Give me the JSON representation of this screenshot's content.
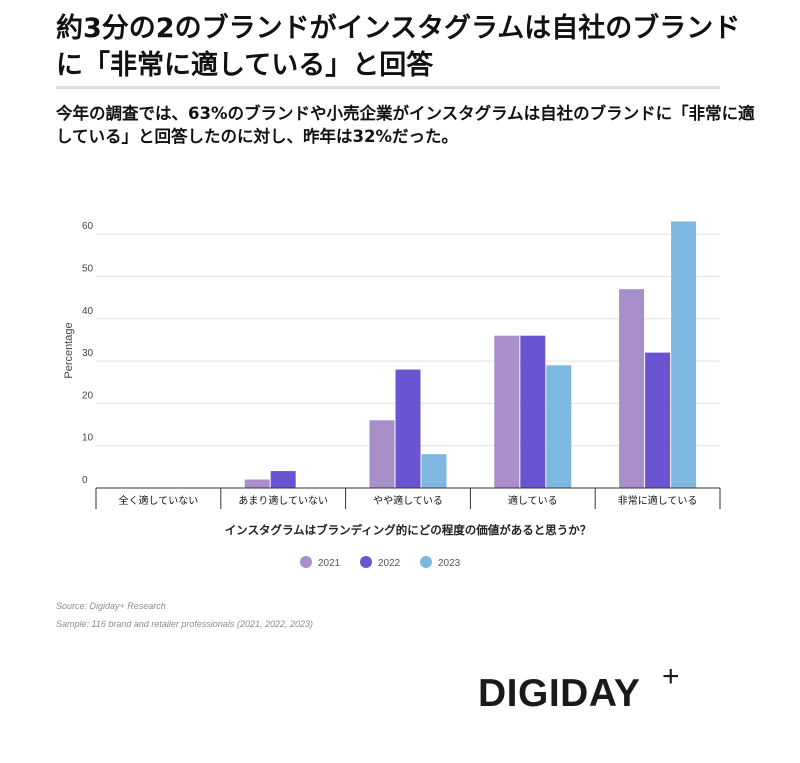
{
  "header": {
    "title": "約3分の2のブランドがインスタグラムは自社のブランドに「非常に適している」と回答",
    "subtitle": "今年の調査では、63%のブランドや小売企業がインスタグラムは自社のブランドに「非常に適している」と回答したのに対し、昨年は32%だった。"
  },
  "chart_data": {
    "type": "bar",
    "title": "",
    "xlabel": "インスタグラムはブランディング的にどの程度の価値があると思うか？",
    "ylabel": "Percentage",
    "categories": [
      "全く適していない",
      "あまり適していない",
      "やや適している",
      "適している",
      "非常に適している"
    ],
    "series": [
      {
        "name": "2021",
        "color": "#a88fc9",
        "values": [
          0,
          2,
          16,
          36,
          47
        ]
      },
      {
        "name": "2022",
        "color": "#6a54d1",
        "values": [
          0,
          4,
          28,
          36,
          32
        ]
      },
      {
        "name": "2023",
        "color": "#7cb8e0",
        "values": [
          0,
          0,
          8,
          29,
          63
        ]
      }
    ],
    "yticks": [
      0,
      10,
      20,
      30,
      40,
      50,
      60
    ],
    "ylim": [
      0,
      65
    ],
    "grid": true,
    "legend": "bottom-center"
  },
  "footer": {
    "source": "Source: Digiday+ Research",
    "sample": "Sample: 116 brand and retailer professionals (2021, 2022, 2023)",
    "logo_text": "DIGIDAY",
    "logo_plus": "+"
  }
}
